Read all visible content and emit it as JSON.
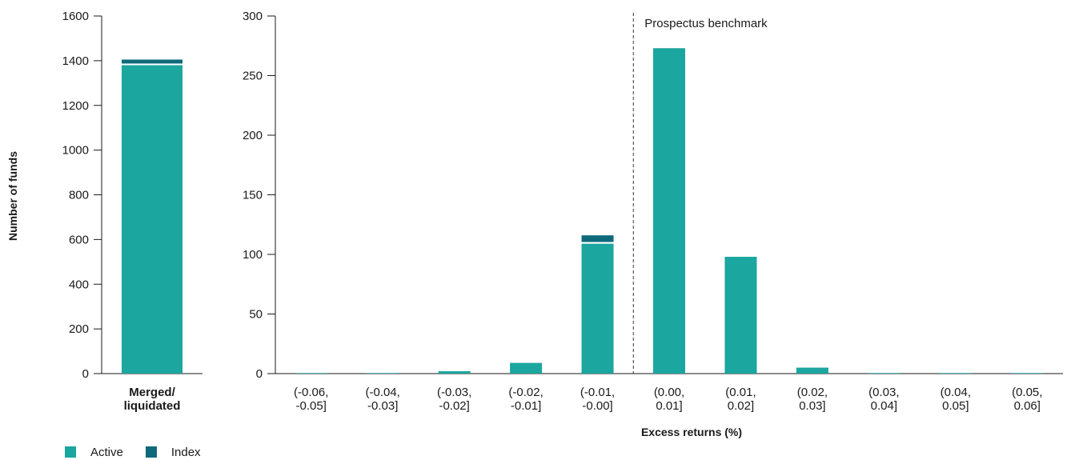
{
  "colors": {
    "active": "#1ba69f",
    "index": "#0e6a7b",
    "axis": "#1a1a1a",
    "benchmark": "#333333"
  },
  "ylabel": "Number of funds",
  "legend": {
    "active_label": "Active",
    "index_label": "Index"
  },
  "chart_data": [
    {
      "type": "bar",
      "stacked": true,
      "categories": [
        "Merged/ liquidated"
      ],
      "series": [
        {
          "name": "Active",
          "values": [
            1380
          ]
        },
        {
          "name": "Index",
          "values": [
            25
          ]
        }
      ],
      "ylim": [
        0,
        1600
      ],
      "yticks": [
        0,
        200,
        400,
        600,
        800,
        1000,
        1200,
        1400,
        1600
      ],
      "xlabel": "",
      "ylabel": "Number of funds"
    },
    {
      "type": "bar",
      "stacked": true,
      "categories": [
        "(-0.06, -0.05]",
        "(-0.04, -0.03]",
        "(-0.03, -0.02]",
        "(-0.02, -0.01]",
        "(-0.01, -0.00]",
        "(0.00, 0.01]",
        "(0.01, 0.02]",
        "(0.02, 0.03]",
        "(0.03, 0.04]",
        "(0.04, 0.05]",
        "(0.05, 0.06]"
      ],
      "series": [
        {
          "name": "Active",
          "values": [
            0.5,
            0.5,
            2,
            9,
            109,
            273,
            98,
            5,
            0.5,
            0.5,
            0.5
          ]
        },
        {
          "name": "Index",
          "values": [
            0,
            0,
            0,
            1,
            7,
            1,
            0,
            0,
            0,
            0,
            0
          ]
        }
      ],
      "ylim": [
        0,
        300
      ],
      "yticks": [
        0,
        50,
        100,
        150,
        200,
        250,
        300
      ],
      "xlabel": "Excess returns (%)",
      "annotations": [
        {
          "text": "Prospectus benchmark",
          "between_categories": [
            4,
            5
          ]
        }
      ]
    }
  ]
}
